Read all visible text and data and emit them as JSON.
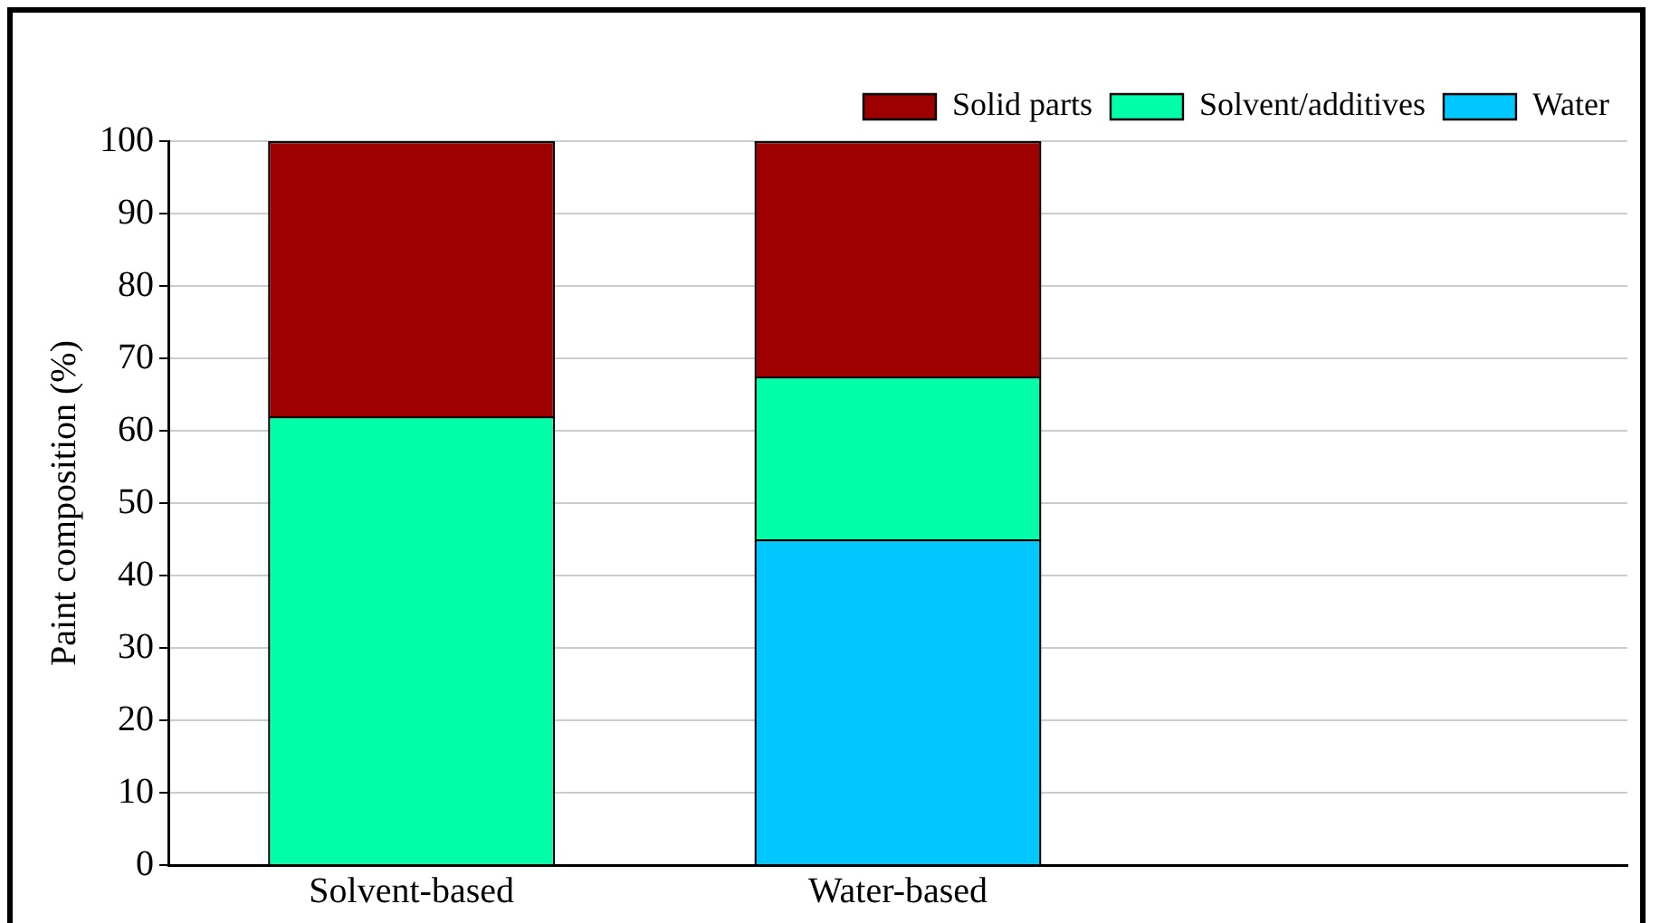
{
  "chart_data": {
    "type": "bar",
    "stacked": true,
    "ylabel": "Paint composition (%)",
    "categories": [
      "Solvent-based",
      "Water-based",
      null
    ],
    "series": [
      {
        "name": "Water",
        "color": "#00c8ff",
        "values": [
          0,
          45,
          null
        ]
      },
      {
        "name": "Solvent/additives",
        "color": "#00ffa8",
        "values": [
          62,
          22.5,
          null
        ]
      },
      {
        "name": "Solid parts",
        "color": "#9e0000",
        "values": [
          38,
          32.5,
          null
        ]
      }
    ],
    "ylim": [
      0,
      100
    ],
    "yticks": [
      0,
      10,
      20,
      30,
      40,
      50,
      60,
      70,
      80,
      90,
      100
    ],
    "grid": "y",
    "legend": "top right"
  }
}
